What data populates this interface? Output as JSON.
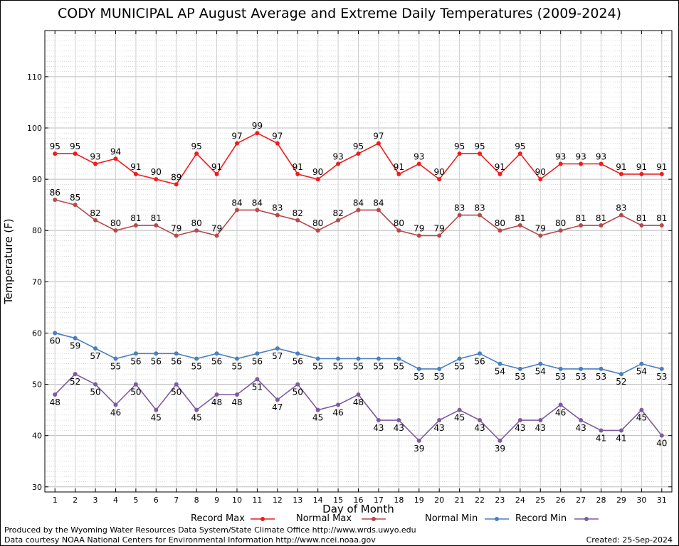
{
  "chart_data": {
    "type": "line",
    "title": "CODY MUNICIPAL AP August Average and Extreme Daily Temperatures (2009-2024)",
    "xlabel": "Day of Month",
    "ylabel": "Temperature (F)",
    "xlim": [
      0.5,
      31.5
    ],
    "ylim": [
      29,
      119
    ],
    "yticks": [
      30,
      40,
      50,
      60,
      70,
      80,
      90,
      100,
      110
    ],
    "x": [
      1,
      2,
      3,
      4,
      5,
      6,
      7,
      8,
      9,
      10,
      11,
      12,
      13,
      14,
      15,
      16,
      17,
      18,
      19,
      20,
      21,
      22,
      23,
      24,
      25,
      26,
      27,
      28,
      29,
      30,
      31
    ],
    "grid": true,
    "legend_position": "bottom",
    "series": [
      {
        "name": "Record Max",
        "color": "#ee1c1c",
        "label_position": "above",
        "values": [
          95,
          95,
          93,
          94,
          91,
          90,
          89,
          95,
          91,
          97,
          99,
          97,
          91,
          90,
          93,
          95,
          97,
          91,
          93,
          90,
          95,
          95,
          91,
          95,
          90,
          93,
          93,
          93,
          91,
          91,
          91
        ]
      },
      {
        "name": "Normal Max",
        "color": "#b5494a",
        "label_position": "above",
        "values": [
          86,
          85,
          82,
          80,
          81,
          81,
          79,
          80,
          79,
          84,
          84,
          83,
          82,
          80,
          82,
          84,
          84,
          80,
          79,
          79,
          83,
          83,
          80,
          81,
          79,
          80,
          81,
          81,
          83,
          81,
          81
        ]
      },
      {
        "name": "Normal Min",
        "color": "#4a7ec0",
        "label_position": "below",
        "values": [
          60,
          59,
          57,
          55,
          56,
          56,
          56,
          55,
          56,
          55,
          56,
          57,
          56,
          55,
          55,
          55,
          55,
          55,
          53,
          53,
          55,
          56,
          54,
          53,
          54,
          53,
          53,
          53,
          52,
          54,
          53
        ]
      },
      {
        "name": "Record Min",
        "color": "#7d5a9e",
        "label_position": "below",
        "values": [
          48,
          52,
          50,
          46,
          50,
          45,
          50,
          45,
          48,
          48,
          51,
          47,
          50,
          45,
          46,
          48,
          43,
          43,
          39,
          43,
          45,
          43,
          39,
          43,
          43,
          46,
          43,
          41,
          41,
          45,
          40
        ]
      }
    ]
  },
  "footer": {
    "producer": "Produced by the Wyoming Water Resources Data System/State Climate Office http://www.wrds.uwyo.edu",
    "courtesy": "Data courtesy NOAA National Centers for Environmental Information http://www.ncei.noaa.gov",
    "created": "Created:  25-Sep-2024"
  }
}
